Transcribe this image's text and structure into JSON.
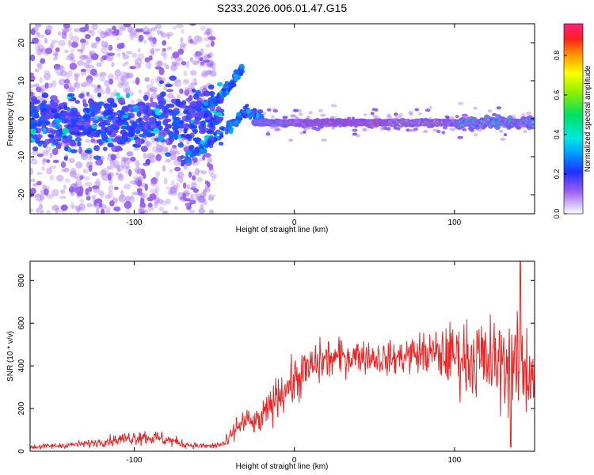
{
  "figure_title": "S233.2026.006.01.47.G15",
  "chart_data": [
    {
      "type": "heatmap",
      "title": "S233.2026.006.01.47.G15",
      "xlabel": "Height of straight line (km)",
      "ylabel": "Frequency (Hz)",
      "xlim": [
        -165,
        150
      ],
      "ylim": [
        -25,
        25
      ],
      "xticks": [
        "-100",
        "0",
        "100"
      ],
      "yticks": [
        "20",
        "10",
        "0",
        "-10",
        "-20"
      ],
      "colorbar": {
        "label": "Normalized spectral amplitude",
        "range": [
          0,
          0.96
        ],
        "ticks": [
          "0.0",
          "0.2",
          "0.4",
          "0.6",
          "0.8"
        ],
        "colormap": "rainbow (purple-blue-cyan-green-yellow-orange-red-magenta)"
      },
      "colors": {
        "low": "#a070f0",
        "high": "#ff2060",
        "frame": "#000000"
      },
      "features": {
        "scatter_region_x": [
          -165,
          -60
        ],
        "main_line_freq_hz": -1,
        "main_line_x": [
          -15,
          150
        ],
        "peak_amplitude_x": [
          0,
          60
        ],
        "branch_upper": [
          [
            -60,
            3
          ],
          [
            -48,
            5
          ],
          [
            -40,
            9
          ],
          [
            -32,
            14
          ]
        ],
        "branch_lower": [
          [
            -70,
            -11
          ],
          [
            -55,
            -7
          ],
          [
            -40,
            -2
          ],
          [
            -30,
            2
          ],
          [
            -20,
            0
          ]
        ]
      }
    },
    {
      "type": "line",
      "title": "",
      "xlabel": "Height of straight line (km)",
      "ylabel": "SNR (10 * v/v)",
      "xlim": [
        -165,
        150
      ],
      "ylim": [
        0,
        890
      ],
      "xticks": [
        "-100",
        "0",
        "100"
      ],
      "yticks": [
        "800",
        "600",
        "400",
        "200",
        "0"
      ],
      "series": [
        {
          "name": "SNR",
          "color": "#ee2222",
          "x": [
            -165,
            -150,
            -130,
            -110,
            -95,
            -80,
            -70,
            -60,
            -50,
            -42,
            -35,
            -30,
            -25,
            -20,
            -10,
            0,
            10,
            20,
            30,
            40,
            50,
            60,
            70,
            80,
            90,
            100,
            110,
            120,
            130,
            140,
            150
          ],
          "values": [
            20,
            25,
            35,
            55,
            70,
            55,
            35,
            25,
            25,
            40,
            120,
            140,
            130,
            150,
            270,
            330,
            390,
            430,
            440,
            450,
            440,
            430,
            450,
            460,
            450,
            450,
            440,
            420,
            410,
            390,
            380
          ],
          "spread": [
            12,
            12,
            15,
            25,
            35,
            30,
            18,
            12,
            12,
            30,
            60,
            60,
            50,
            70,
            90,
            100,
            100,
            90,
            80,
            70,
            70,
            70,
            80,
            90,
            110,
            140,
            170,
            190,
            200,
            210,
            210
          ],
          "peak": {
            "x": 141,
            "value": 890
          },
          "dip": {
            "x": 135,
            "value": 20
          }
        }
      ]
    }
  ]
}
